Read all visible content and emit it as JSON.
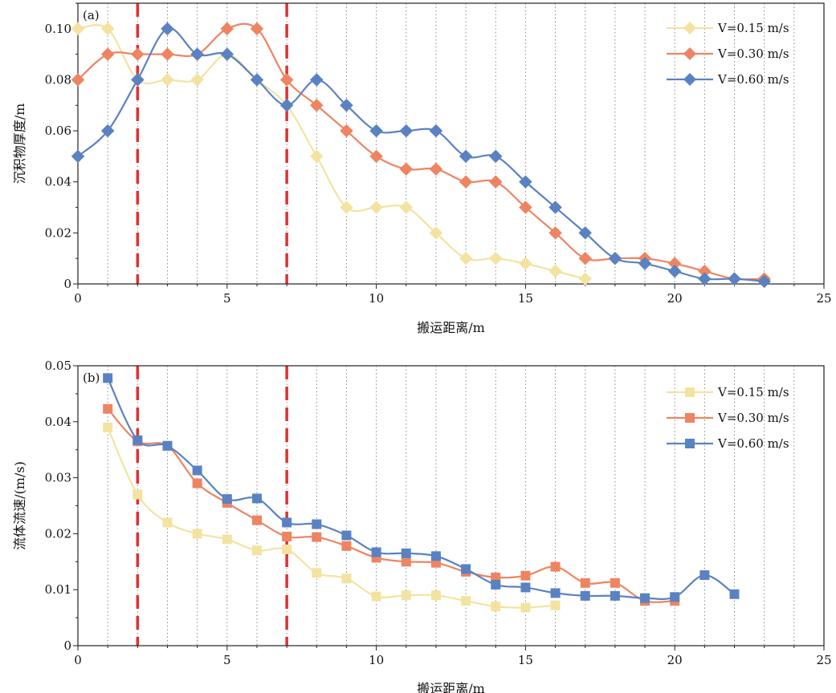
{
  "chart_data": [
    {
      "type": "line",
      "panel_label": "(a)",
      "xlabel": "搬运距离/m",
      "ylabel": "沉积物厚度/m",
      "xlim": [
        0,
        25
      ],
      "ylim": [
        0,
        0.11
      ],
      "xticks": [
        0,
        5,
        10,
        15,
        20,
        25
      ],
      "yticks": [
        0,
        0.02,
        0.04,
        0.06,
        0.08,
        0.1
      ],
      "ytick_labels": [
        "0",
        "0.02",
        "0.04",
        "0.06",
        "0.08",
        "0.10"
      ],
      "xtick_labels": [
        "0",
        "5",
        "10",
        "15",
        "20",
        "25"
      ],
      "marker": "diamond",
      "grid": "vertical dotted lines every 1 m",
      "reference_lines_x": [
        2,
        7
      ],
      "legend_position": "top-right",
      "series": [
        {
          "name": "V=0.15 m/s",
          "color": "#f3e3a0",
          "x": [
            0,
            1,
            2,
            3,
            4,
            5,
            6,
            7,
            8,
            9,
            10,
            11,
            12,
            13,
            14,
            15,
            16,
            17
          ],
          "y": [
            0.1,
            0.1,
            0.08,
            0.08,
            0.08,
            0.09,
            0.08,
            0.07,
            0.05,
            0.03,
            0.03,
            0.03,
            0.02,
            0.01,
            0.01,
            0.008,
            0.005,
            0.002
          ]
        },
        {
          "name": "V=0.30 m/s",
          "color": "#ee8462",
          "x": [
            0,
            1,
            2,
            3,
            4,
            5,
            6,
            7,
            8,
            9,
            10,
            11,
            12,
            13,
            14,
            15,
            16,
            17,
            18,
            19,
            20,
            21,
            22,
            23
          ],
          "y": [
            0.08,
            0.09,
            0.09,
            0.09,
            0.09,
            0.1,
            0.1,
            0.08,
            0.07,
            0.06,
            0.05,
            0.045,
            0.045,
            0.04,
            0.04,
            0.03,
            0.02,
            0.01,
            0.01,
            0.01,
            0.008,
            0.005,
            0.002,
            0.002
          ]
        },
        {
          "name": "V=0.60 m/s",
          "color": "#5a82c2",
          "x": [
            0,
            1,
            2,
            3,
            4,
            5,
            6,
            7,
            8,
            9,
            10,
            11,
            12,
            13,
            14,
            15,
            16,
            17,
            18,
            19,
            20,
            21,
            22,
            23
          ],
          "y": [
            0.05,
            0.06,
            0.08,
            0.1,
            0.09,
            0.09,
            0.08,
            0.07,
            0.08,
            0.07,
            0.06,
            0.06,
            0.06,
            0.05,
            0.05,
            0.04,
            0.03,
            0.02,
            0.01,
            0.008,
            0.005,
            0.002,
            0.002,
            0.001
          ]
        }
      ]
    },
    {
      "type": "line",
      "panel_label": "(b)",
      "xlabel": "搬运距离/m",
      "ylabel": "流体流速/(m/s)",
      "xlim": [
        0,
        25
      ],
      "ylim": [
        0,
        0.05
      ],
      "xticks": [
        0,
        5,
        10,
        15,
        20,
        25
      ],
      "yticks": [
        0,
        0.01,
        0.02,
        0.03,
        0.04,
        0.05
      ],
      "ytick_labels": [
        "0",
        "0.01",
        "0.02",
        "0.03",
        "0.04",
        "0.05"
      ],
      "xtick_labels": [
        "0",
        "5",
        "10",
        "15",
        "20",
        "25"
      ],
      "marker": "square",
      "grid": "vertical dotted lines every 1 m",
      "reference_lines_x": [
        2,
        7
      ],
      "legend_position": "top-right",
      "series": [
        {
          "name": "V=0.15 m/s",
          "color": "#f3e3a0",
          "x": [
            1,
            2,
            3,
            4,
            5,
            6,
            7,
            8,
            9,
            10,
            11,
            12,
            13,
            14,
            15,
            16
          ],
          "y": [
            0.039,
            0.027,
            0.022,
            0.02,
            0.019,
            0.017,
            0.0172,
            0.013,
            0.012,
            0.0088,
            0.009,
            0.009,
            0.008,
            0.007,
            0.0068,
            0.0072
          ]
        },
        {
          "name": "V=0.30 m/s",
          "color": "#ee8462",
          "x": [
            1,
            2,
            3,
            4,
            5,
            6,
            7,
            8,
            9,
            10,
            11,
            12,
            13,
            14,
            15,
            16,
            17,
            18,
            19,
            20
          ],
          "y": [
            0.0423,
            0.0365,
            0.0357,
            0.029,
            0.0255,
            0.0224,
            0.0195,
            0.0194,
            0.0178,
            0.0157,
            0.015,
            0.0148,
            0.0132,
            0.0122,
            0.0125,
            0.0141,
            0.0112,
            0.0112,
            0.008,
            0.008
          ]
        },
        {
          "name": "V=0.60 m/s",
          "color": "#5a82c2",
          "x": [
            1,
            2,
            3,
            4,
            5,
            6,
            7,
            8,
            9,
            10,
            11,
            12,
            13,
            14,
            15,
            16,
            17,
            18,
            19,
            20,
            21,
            22
          ],
          "y": [
            0.0478,
            0.0367,
            0.0357,
            0.0313,
            0.0262,
            0.0263,
            0.022,
            0.0217,
            0.0197,
            0.0167,
            0.0165,
            0.016,
            0.0137,
            0.0109,
            0.0104,
            0.0094,
            0.0089,
            0.0089,
            0.0085,
            0.0087,
            0.0126,
            0.0092
          ]
        }
      ]
    }
  ]
}
